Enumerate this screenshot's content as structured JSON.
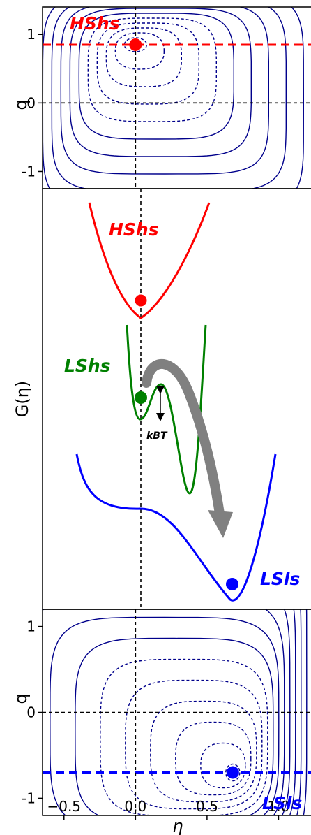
{
  "chart_data": [
    {
      "type": "contour",
      "panel": "top",
      "ylabel": "q",
      "xlim": [
        -0.65,
        1.3
      ],
      "ylim": [
        -1.25,
        1.4
      ],
      "yticks": [
        "1",
        "0",
        "-1"
      ],
      "ytick_values": [
        1,
        0,
        -1
      ],
      "minimum": {
        "x": 0.0,
        "y": 0.85,
        "label": "HShs",
        "color": "#ff0000"
      },
      "guide_lines": {
        "horizontal_dashed": [
          0.85,
          0.0
        ],
        "vertical_dashed": [
          0.0
        ]
      },
      "contour_color": "#00008b"
    },
    {
      "type": "line",
      "panel": "middle",
      "ylabel": "G(η)",
      "xlim": [
        -0.65,
        1.3
      ],
      "series": [
        {
          "name": "HShs",
          "color": "#ff0000",
          "shape": "single-well",
          "minimum_x": 0.0
        },
        {
          "name": "LShs",
          "color": "#008000",
          "shape": "double-well",
          "minima_x": [
            0.0,
            0.35
          ],
          "barrier_x": 0.13
        },
        {
          "name": "LSls",
          "color": "#0000ff",
          "shape": "plateau-well",
          "minimum_x": 0.68
        }
      ],
      "annotation": "kBT",
      "arrow": {
        "from": "LShs",
        "to": "LSls",
        "color": "#808080"
      }
    },
    {
      "type": "contour",
      "panel": "bottom",
      "ylabel": "q",
      "xlabel": "η",
      "xlim": [
        -0.65,
        1.3
      ],
      "ylim": [
        -1.2,
        1.2
      ],
      "xticks": [
        "−0.5",
        "0.0",
        "0.5",
        "1.0"
      ],
      "xtick_values": [
        -0.5,
        0.0,
        0.5,
        1.0
      ],
      "yticks": [
        "1",
        "0",
        "-1"
      ],
      "ytick_values": [
        1,
        0,
        -1
      ],
      "minimum": {
        "x": 0.68,
        "y": -0.7,
        "label": "LSls",
        "color": "#0000ff"
      },
      "guide_lines": {
        "horizontal_dashed": [
          -0.7,
          0.0
        ],
        "vertical_dashed": [
          0.0
        ]
      },
      "contour_color": "#00008b"
    }
  ]
}
